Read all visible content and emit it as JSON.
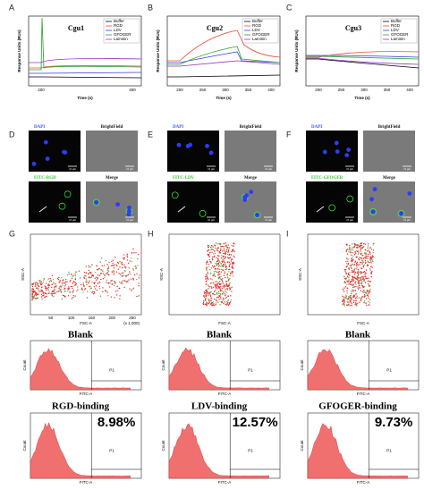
{
  "sensorgrams": [
    {
      "label": "A",
      "title": "Cgu1",
      "xticks": [
        "200",
        "400"
      ]
    },
    {
      "label": "B",
      "title": "Cgu2",
      "xticks": [
        "200",
        "250",
        "300",
        "350",
        "400"
      ]
    },
    {
      "label": "C",
      "title": "Cgu3",
      "xticks": [
        "200",
        "250",
        "300",
        "350",
        "400"
      ]
    }
  ],
  "sensorgram_axes": {
    "y": "Response Units (RUs)",
    "x": "Time (s)"
  },
  "legend": [
    "Buffer",
    "RGD",
    "LDV",
    "GFOGER",
    "Laminin"
  ],
  "imaging": [
    {
      "label": "D",
      "channels": [
        "DAPI",
        "BrightField",
        "FITC-RGD",
        "Merge"
      ]
    },
    {
      "label": "E",
      "channels": [
        "DAPI",
        "BrightField",
        "FITC-LDV",
        "Merge"
      ]
    },
    {
      "label": "F",
      "channels": [
        "DAPI",
        "BrightField",
        "FITC-GFOGER",
        "Merge"
      ]
    }
  ],
  "scale_bar": "10 μm",
  "flow": [
    {
      "label": "G",
      "blank_title": "Blank",
      "binding_title": "RGD-binding",
      "percentage": "8.98%"
    },
    {
      "label": "H",
      "blank_title": "Blank",
      "binding_title": "LDV-binding",
      "percentage": "12.57%"
    },
    {
      "label": "I",
      "blank_title": "Blank",
      "binding_title": "GFOGER-binding",
      "percentage": "9.73%"
    }
  ],
  "flow_axes": {
    "scatter_y": "SSC-A",
    "scatter_x": "FSC-A",
    "hist_y": "Count",
    "hist_x": "FITC-A",
    "gate": "P1"
  },
  "scatter_g_ticks": [
    "50",
    "100",
    "150",
    "200",
    "250"
  ],
  "scatter_g_unit": "(x 1,000)"
}
